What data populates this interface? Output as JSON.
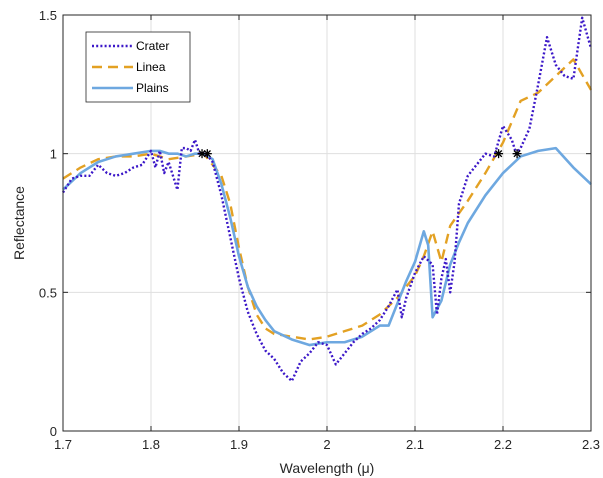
{
  "chart_data": {
    "type": "line",
    "xlabel": "Wavelength (μ)",
    "ylabel": "Reflectance",
    "xlim": [
      1.7,
      2.3
    ],
    "ylim": [
      0,
      1.5
    ],
    "xticks": [
      1.7,
      1.8,
      1.9,
      2.0,
      2.1,
      2.2,
      2.3
    ],
    "xtick_labels": [
      "1.7",
      "1.8",
      "1.9",
      "2",
      "2.1",
      "2.2",
      "2.3"
    ],
    "yticks": [
      0,
      0.5,
      1.0,
      1.5
    ],
    "ytick_labels": [
      "0",
      "0.5",
      "1",
      "1.5"
    ],
    "grid": true,
    "legend_position": "top-left",
    "series": [
      {
        "name": "Crater",
        "color": "#3b17c8",
        "style": "dotted",
        "x": [
          1.7,
          1.71,
          1.72,
          1.73,
          1.74,
          1.75,
          1.76,
          1.77,
          1.78,
          1.79,
          1.8,
          1.805,
          1.81,
          1.815,
          1.82,
          1.825,
          1.83,
          1.835,
          1.84,
          1.845,
          1.85,
          1.855,
          1.86,
          1.865,
          1.87,
          1.88,
          1.89,
          1.9,
          1.91,
          1.92,
          1.93,
          1.94,
          1.95,
          1.96,
          1.97,
          1.98,
          1.99,
          2.0,
          2.01,
          2.02,
          2.03,
          2.04,
          2.05,
          2.06,
          2.07,
          2.08,
          2.085,
          2.09,
          2.1,
          2.11,
          2.12,
          2.125,
          2.13,
          2.135,
          2.14,
          2.145,
          2.15,
          2.16,
          2.17,
          2.18,
          2.19,
          2.2,
          2.21,
          2.215,
          2.22,
          2.23,
          2.24,
          2.25,
          2.26,
          2.27,
          2.28,
          2.29,
          2.3
        ],
        "y": [
          0.86,
          0.91,
          0.92,
          0.92,
          0.96,
          0.93,
          0.92,
          0.93,
          0.95,
          0.96,
          1.01,
          0.95,
          1.01,
          0.93,
          0.97,
          0.92,
          0.87,
          1.02,
          1.02,
          1.01,
          1.05,
          1.0,
          1.0,
          0.99,
          0.97,
          0.85,
          0.7,
          0.55,
          0.43,
          0.35,
          0.29,
          0.26,
          0.21,
          0.18,
          0.25,
          0.28,
          0.32,
          0.31,
          0.24,
          0.28,
          0.32,
          0.35,
          0.37,
          0.4,
          0.45,
          0.51,
          0.41,
          0.48,
          0.57,
          0.63,
          0.6,
          0.42,
          0.55,
          0.62,
          0.5,
          0.61,
          0.82,
          0.92,
          0.96,
          1.0,
          0.99,
          1.1,
          1.05,
          1.0,
          1.02,
          1.09,
          1.25,
          1.42,
          1.32,
          1.28,
          1.27,
          1.49,
          1.38
        ]
      },
      {
        "name": "Linea",
        "color": "#e3a123",
        "style": "dashed",
        "x": [
          1.7,
          1.72,
          1.74,
          1.76,
          1.78,
          1.8,
          1.82,
          1.84,
          1.86,
          1.87,
          1.88,
          1.89,
          1.9,
          1.91,
          1.92,
          1.93,
          1.94,
          1.96,
          1.98,
          2.0,
          2.02,
          2.04,
          2.06,
          2.08,
          2.1,
          2.11,
          2.12,
          2.13,
          2.14,
          2.16,
          2.18,
          2.2,
          2.22,
          2.24,
          2.26,
          2.28,
          2.3
        ],
        "y": [
          0.91,
          0.95,
          0.98,
          0.99,
          0.99,
          1.0,
          0.98,
          0.99,
          1.0,
          0.96,
          0.92,
          0.82,
          0.66,
          0.52,
          0.42,
          0.37,
          0.35,
          0.34,
          0.33,
          0.34,
          0.36,
          0.38,
          0.42,
          0.48,
          0.56,
          0.63,
          0.72,
          0.61,
          0.74,
          0.83,
          0.93,
          1.04,
          1.19,
          1.22,
          1.28,
          1.34,
          1.23
        ]
      },
      {
        "name": "Plains",
        "color": "#6ea8e0",
        "style": "solid",
        "x": [
          1.7,
          1.72,
          1.74,
          1.76,
          1.78,
          1.8,
          1.81,
          1.82,
          1.83,
          1.84,
          1.85,
          1.86,
          1.87,
          1.88,
          1.89,
          1.9,
          1.91,
          1.92,
          1.93,
          1.94,
          1.96,
          1.98,
          2.0,
          2.02,
          2.04,
          2.06,
          2.07,
          2.08,
          2.09,
          2.1,
          2.11,
          2.115,
          2.12,
          2.13,
          2.14,
          2.15,
          2.16,
          2.18,
          2.2,
          2.22,
          2.24,
          2.26,
          2.28,
          2.3
        ],
        "y": [
          0.87,
          0.93,
          0.97,
          0.99,
          1.0,
          1.01,
          1.01,
          1.0,
          1.0,
          0.99,
          1.0,
          1.0,
          0.98,
          0.89,
          0.77,
          0.63,
          0.52,
          0.45,
          0.4,
          0.36,
          0.33,
          0.31,
          0.32,
          0.32,
          0.34,
          0.38,
          0.38,
          0.46,
          0.54,
          0.61,
          0.72,
          0.67,
          0.41,
          0.47,
          0.6,
          0.68,
          0.75,
          0.85,
          0.93,
          0.99,
          1.01,
          1.02,
          0.95,
          0.89
        ]
      }
    ],
    "markers": {
      "symbol": "*",
      "color": "#000000",
      "points": [
        {
          "x": 1.858,
          "y": 1.0
        },
        {
          "x": 1.864,
          "y": 1.0
        },
        {
          "x": 2.195,
          "y": 1.0
        },
        {
          "x": 2.216,
          "y": 1.0
        }
      ]
    }
  }
}
